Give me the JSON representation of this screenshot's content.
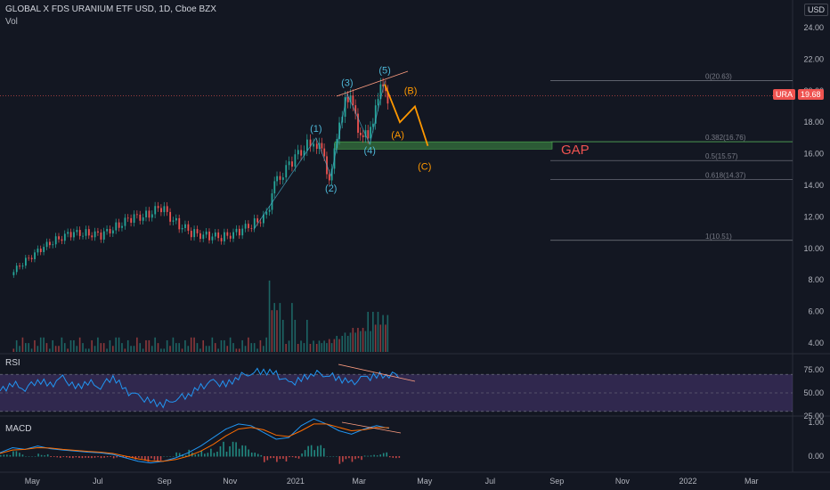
{
  "header": {
    "symbol": "GLOBAL X FDS URANIUM ETF USD, 1D, Cboe BZX",
    "volume_label": "Vol",
    "currency": "USD"
  },
  "colors": {
    "background": "#131722",
    "up": "#26a69a",
    "down": "#ef5350",
    "wave": "#4db6d6",
    "abc": "#ff9800",
    "rsi": "#2196f3",
    "rsi_band": "#7e57c2",
    "macd": "#2196f3",
    "signal": "#ff6d00",
    "gap": "#4caf50",
    "gap_text": "#ef5350",
    "fib": "#787b86",
    "trend": "#ff9e80"
  },
  "chart_data": [
    {
      "type": "candlestick",
      "title": "",
      "symbol_badge": "URA",
      "last_price": "19.68",
      "y_ticks": [
        "24.00",
        "22.00",
        "20.00",
        "18.00",
        "16.00",
        "14.00",
        "12.00",
        "10.00",
        "8.00",
        "6.00",
        "4.00"
      ],
      "x_ticks": [
        "May",
        "Jul",
        "Sep",
        "Nov",
        "2021",
        "Mar",
        "May",
        "Jul",
        "Sep",
        "Nov",
        "2022",
        "Mar"
      ],
      "price_path": [
        {
          "date": "2020-04-13",
          "close": 8.3
        },
        {
          "date": "2020-04-27",
          "close": 9.3
        },
        {
          "date": "2020-05-11",
          "close": 9.9
        },
        {
          "date": "2020-05-25",
          "close": 10.6
        },
        {
          "date": "2020-06-08",
          "close": 10.9
        },
        {
          "date": "2020-06-22",
          "close": 11.0
        },
        {
          "date": "2020-07-06",
          "close": 10.8
        },
        {
          "date": "2020-07-20",
          "close": 11.4
        },
        {
          "date": "2020-08-03",
          "close": 11.9
        },
        {
          "date": "2020-08-17",
          "close": 12.1
        },
        {
          "date": "2020-08-31",
          "close": 12.6
        },
        {
          "date": "2020-09-14",
          "close": 11.6
        },
        {
          "date": "2020-09-28",
          "close": 11.0
        },
        {
          "date": "2020-10-12",
          "close": 10.8
        },
        {
          "date": "2020-10-26",
          "close": 10.7
        },
        {
          "date": "2020-11-09",
          "close": 11.0
        },
        {
          "date": "2020-11-23",
          "close": 11.5
        },
        {
          "date": "2020-12-07",
          "close": 12.1
        },
        {
          "date": "2020-12-14",
          "close": 14.0
        },
        {
          "date": "2020-12-28",
          "close": 15.3
        },
        {
          "date": "2021-01-11",
          "close": 16.4
        },
        {
          "date": "2021-01-20",
          "close": 16.9
        },
        {
          "date": "2021-01-27",
          "close": 16.1
        },
        {
          "date": "2021-02-03",
          "close": 14.5
        },
        {
          "date": "2021-02-10",
          "close": 16.8
        },
        {
          "date": "2021-02-18",
          "close": 19.7
        },
        {
          "date": "2021-02-25",
          "close": 19.0
        },
        {
          "date": "2021-03-04",
          "close": 17.2
        },
        {
          "date": "2021-03-11",
          "close": 17.0
        },
        {
          "date": "2021-03-18",
          "close": 19.0
        },
        {
          "date": "2021-03-25",
          "close": 20.4
        },
        {
          "date": "2021-03-29",
          "close": 19.68
        }
      ],
      "volume_spikes": [
        1.0,
        1.4,
        1.1,
        1.6,
        2.0,
        2.4,
        3.0,
        2.6,
        5.0,
        3.4,
        4.6,
        3.1,
        2.8,
        6.5,
        4.1,
        3.6,
        7.2,
        8.9,
        5.2,
        6.1,
        4.0
      ],
      "wave_labels": [
        {
          "label": "(1)",
          "date": "2021-01-20",
          "price": 17.4
        },
        {
          "label": "(2)",
          "date": "2021-02-03",
          "price": 13.6
        },
        {
          "label": "(3)",
          "date": "2021-02-18",
          "price": 20.3
        },
        {
          "label": "(4)",
          "date": "2021-03-11",
          "price": 16.0
        },
        {
          "label": "(5)",
          "date": "2021-03-25",
          "price": 21.1
        }
      ],
      "abc_labels": [
        {
          "label": "(A)",
          "date": "2021-04-06",
          "price": 17.0
        },
        {
          "label": "(B)",
          "date": "2021-04-18",
          "price": 19.8
        },
        {
          "label": "(C)",
          "date": "2021-05-01",
          "price": 15.0
        }
      ],
      "abc_path": [
        {
          "date": "2021-03-25",
          "price": 20.4
        },
        {
          "date": "2021-04-08",
          "price": 18.0
        },
        {
          "date": "2021-04-22",
          "price": 19.0
        },
        {
          "date": "2021-05-04",
          "price": 16.5
        }
      ],
      "gap_zone": {
        "label": "GAP",
        "top": 16.76,
        "bottom": 16.3
      },
      "fib_levels": [
        {
          "label": "0(20.63)",
          "value": 20.63
        },
        {
          "label": "0.382(16.76)",
          "value": 16.76
        },
        {
          "label": "0.5(15.57)",
          "value": 15.57
        },
        {
          "label": "0.618(14.37)",
          "value": 14.37
        },
        {
          "label": "1(10.51)",
          "value": 10.51
        }
      ]
    },
    {
      "type": "line",
      "title": "RSI",
      "y_ticks": [
        "75.00",
        "50.00",
        "25.00"
      ],
      "overbought": 70,
      "oversold": 30,
      "values": [
        52,
        60,
        55,
        64,
        58,
        66,
        55,
        62,
        57,
        68,
        52,
        46,
        40,
        38,
        44,
        48,
        56,
        62,
        58,
        68,
        72,
        74,
        70,
        60,
        64,
        72,
        70,
        66,
        60,
        66,
        68,
        70
      ]
    },
    {
      "type": "line",
      "title": "MACD",
      "y_ticks": [
        "1.00",
        "0.00"
      ],
      "macd": [
        0.1,
        0.25,
        0.2,
        0.3,
        0.22,
        0.18,
        0.15,
        0.12,
        0.1,
        0.05,
        -0.05,
        -0.15,
        -0.2,
        -0.15,
        -0.05,
        0.1,
        0.3,
        0.55,
        0.8,
        0.95,
        0.9,
        0.7,
        0.5,
        0.55,
        0.9,
        1.1,
        0.95,
        0.75,
        0.65,
        0.8,
        0.9,
        0.82
      ],
      "signal": [
        0.08,
        0.18,
        0.2,
        0.25,
        0.24,
        0.2,
        0.17,
        0.14,
        0.12,
        0.08,
        0.0,
        -0.08,
        -0.14,
        -0.15,
        -0.1,
        0.0,
        0.15,
        0.35,
        0.6,
        0.8,
        0.85,
        0.78,
        0.62,
        0.58,
        0.75,
        0.95,
        0.95,
        0.85,
        0.75,
        0.78,
        0.85,
        0.84
      ]
    }
  ]
}
